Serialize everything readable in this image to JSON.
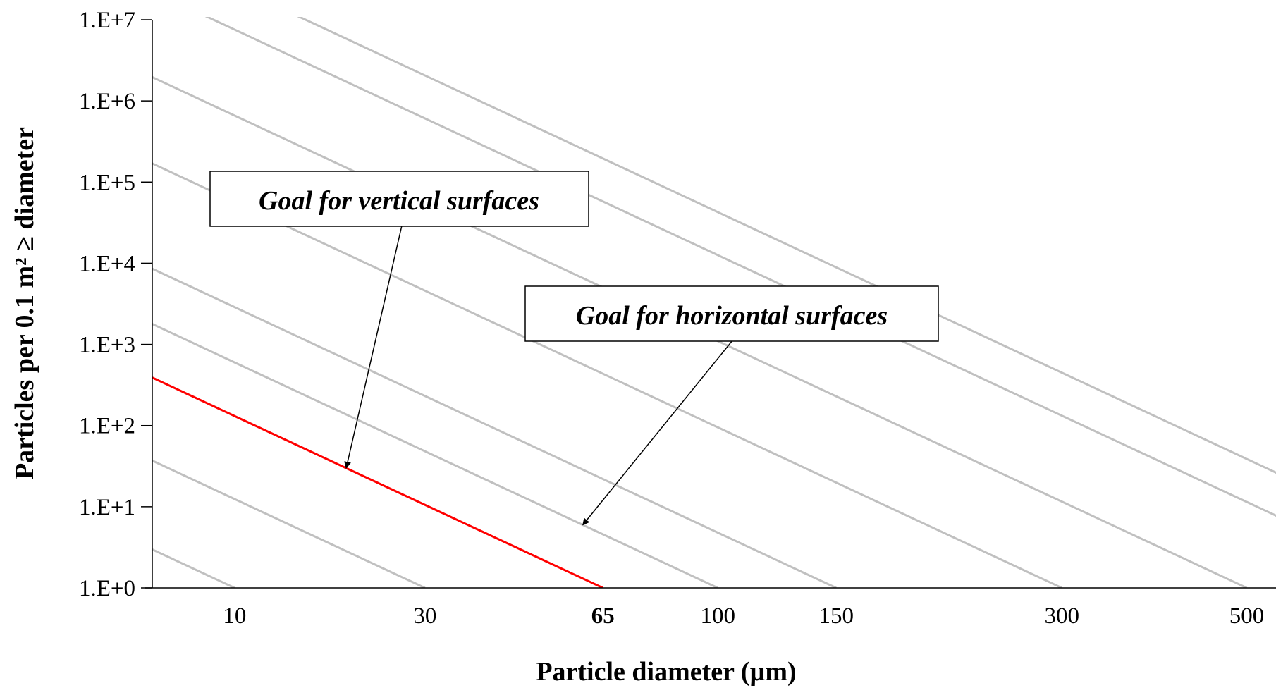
{
  "chart_data": {
    "type": "line",
    "title": "",
    "xlabel": "Particle diameter (µm)",
    "ylabel": "Particles per 0.1 m² ≥ diameter",
    "x_scale": "log-squared",
    "y_scale": "log",
    "xlim": [
      5,
      540
    ],
    "ylim": [
      1,
      10000000
    ],
    "grid": false,
    "x_ticks": [
      {
        "value": 10,
        "label": "10",
        "color": "#000000",
        "bold": false
      },
      {
        "value": 30,
        "label": "30",
        "color": "#000000",
        "bold": false
      },
      {
        "value": 65,
        "label": "65",
        "color": "#ff0000",
        "bold": true
      },
      {
        "value": 100,
        "label": "100",
        "color": "#000000",
        "bold": false
      },
      {
        "value": 150,
        "label": "150",
        "color": "#000000",
        "bold": false
      },
      {
        "value": 300,
        "label": "300",
        "color": "#000000",
        "bold": false
      },
      {
        "value": 500,
        "label": "500",
        "color": "#000000",
        "bold": false
      }
    ],
    "y_ticks": [
      {
        "value": 1,
        "label": "1.E+0"
      },
      {
        "value": 10,
        "label": "1.E+1"
      },
      {
        "value": 100,
        "label": "1.E+2"
      },
      {
        "value": 1000,
        "label": "1.E+3"
      },
      {
        "value": 10000,
        "label": "1.E+4"
      },
      {
        "value": 100000,
        "label": "1.E+5"
      },
      {
        "value": 1000000,
        "label": "1.E+6"
      },
      {
        "value": 10000000,
        "label": "1.E+7"
      }
    ],
    "series": [
      {
        "level": 10,
        "color": "#c0c0c0",
        "highlight": false
      },
      {
        "level": 30,
        "color": "#c0c0c0",
        "highlight": false
      },
      {
        "level": 65,
        "color": "#ff0000",
        "highlight": true
      },
      {
        "level": 100,
        "color": "#c0c0c0",
        "highlight": false
      },
      {
        "level": 150,
        "color": "#c0c0c0",
        "highlight": false
      },
      {
        "level": 300,
        "color": "#c0c0c0",
        "highlight": false
      },
      {
        "level": 500,
        "color": "#c0c0c0",
        "highlight": false
      },
      {
        "level": 800,
        "color": "#c0c0c0",
        "highlight": false
      },
      {
        "level": 1000,
        "color": "#c0c0c0",
        "highlight": false
      }
    ],
    "annotations": [
      {
        "text": "Goal for vertical surfaces",
        "target_x": 20,
        "target_level": 65
      },
      {
        "text": "Goal for horizontal surfaces",
        "target_x": 60,
        "target_level": 100
      }
    ]
  },
  "colors": {
    "highlight": "#ff0000",
    "reference_line": "#c0c0c0",
    "axis": "#000000"
  }
}
